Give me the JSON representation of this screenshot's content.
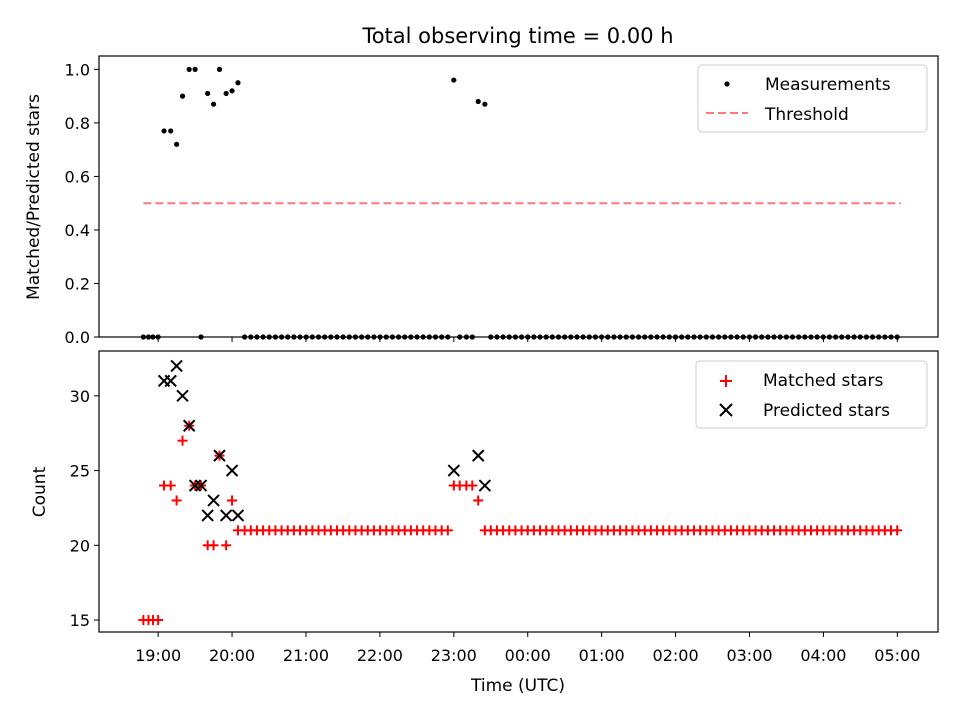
{
  "chart_data": [
    {
      "type": "scatter",
      "title": "Total observing time = 0.00 h",
      "xlabel": "",
      "ylabel": "Matched/Predicted stars",
      "ylim": [
        0,
        1.05
      ],
      "yticks": [
        "0.0",
        "0.2",
        "0.4",
        "0.6",
        "0.8",
        "1.0"
      ],
      "legend_position": "top-right",
      "series": [
        {
          "name": "Measurements",
          "color": "#000000",
          "marker": "dot",
          "x": [
            18.8,
            18.87,
            18.93,
            19.0,
            19.08,
            19.17,
            19.25,
            19.33,
            19.42,
            19.5,
            19.58,
            19.67,
            19.75,
            19.83,
            19.92,
            20.0,
            20.08,
            23.0,
            23.08,
            23.17,
            23.25,
            23.33,
            23.42
          ],
          "y": [
            0,
            0,
            0,
            0,
            0.77,
            0.77,
            0.72,
            0.9,
            1.0,
            1.0,
            0,
            0.91,
            0.87,
            1.0,
            0.91,
            0.92,
            0.95,
            0.96,
            0,
            0,
            0,
            0.88,
            0.87
          ],
          "zero_fill": {
            "from": 20.17,
            "to": 22.92,
            "step": 0.0833,
            "value": 0
          }
        },
        {
          "name": "Threshold",
          "color": "#ff7777",
          "style": "dashed",
          "x": [
            18.8,
            29.05
          ],
          "y": [
            0.5,
            0.5
          ]
        }
      ]
    },
    {
      "type": "scatter",
      "title": "",
      "xlabel": "Time (UTC)",
      "ylabel": "Count",
      "ylim": [
        14.2,
        33.0
      ],
      "yticks": [
        "15",
        "20",
        "25",
        "30"
      ],
      "legend_position": "top-right",
      "xlim": [
        18.2,
        29.55
      ],
      "xticks": [
        "19:00",
        "20:00",
        "21:00",
        "22:00",
        "23:00",
        "00:00",
        "01:00",
        "02:00",
        "03:00",
        "04:00",
        "05:00"
      ],
      "series": [
        {
          "name": "Matched stars",
          "color": "#ff0000",
          "marker": "plus",
          "x": [
            18.8,
            18.87,
            18.93,
            19.0,
            19.08,
            19.17,
            19.25,
            19.33,
            19.42,
            19.5,
            19.58,
            19.67,
            19.75,
            19.83,
            19.92,
            20.0,
            20.08,
            23.0,
            23.08,
            23.17,
            23.25,
            23.33,
            23.42
          ],
          "y": [
            15,
            15,
            15,
            15,
            24,
            24,
            23,
            27,
            28,
            24,
            24,
            20,
            20,
            26,
            20,
            23,
            21,
            24,
            24,
            24,
            24,
            23,
            21
          ],
          "fill_segments": [
            {
              "from": 20.17,
              "to": 22.92,
              "step": 0.0833,
              "value": 21
            },
            {
              "from": 23.5,
              "to": 29.08,
              "step": 0.0833,
              "value": 21
            }
          ]
        },
        {
          "name": "Predicted stars",
          "color": "#000000",
          "marker": "x",
          "x": [
            19.08,
            19.17,
            19.25,
            19.33,
            19.42,
            19.5,
            19.58,
            19.67,
            19.75,
            19.83,
            19.92,
            20.0,
            20.08,
            23.0,
            23.33,
            23.42
          ],
          "y": [
            31,
            31,
            32,
            30,
            28,
            24,
            24,
            22,
            23,
            26,
            22,
            25,
            22,
            25,
            26,
            24
          ]
        }
      ]
    }
  ]
}
